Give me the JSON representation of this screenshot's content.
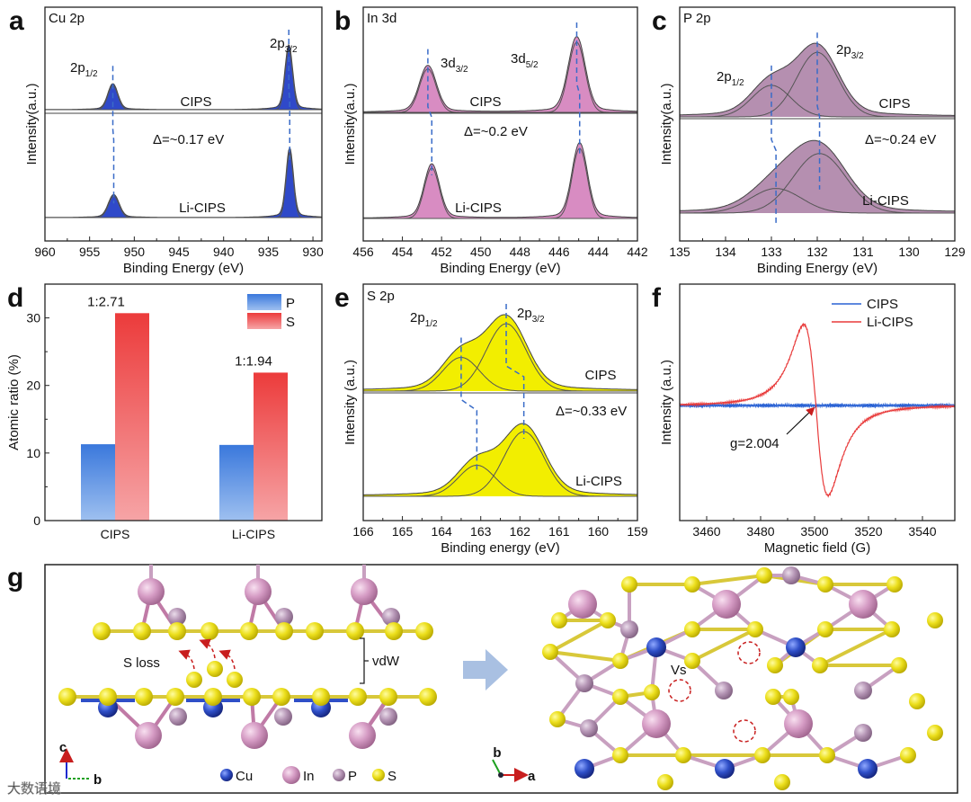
{
  "figure": {
    "panel_letters": [
      "a",
      "b",
      "c",
      "d",
      "e",
      "f",
      "g"
    ],
    "colors": {
      "axis": "#222222",
      "dash": "#3a6cc8",
      "component": "#555555"
    }
  },
  "chart_data": [
    {
      "panel": "a",
      "type": "line",
      "title": "Cu 2p",
      "xlabel": "Binding Energy (eV)",
      "ylabel": "Intensity(a.u.)",
      "xlim": [
        960,
        929
      ],
      "xticks": [
        960,
        955,
        950,
        945,
        940,
        935,
        930
      ],
      "fill": "#2f49c9",
      "series": [
        {
          "name": "CIPS",
          "peaks": [
            {
              "center": 952.4,
              "height": 0.4,
              "fwhm": 1.3
            },
            {
              "center": 932.7,
              "height": 1.0,
              "fwhm": 1.0
            }
          ]
        },
        {
          "name": "Li-CIPS",
          "peaks": [
            {
              "center": 952.3,
              "height": 0.33,
              "fwhm": 1.4
            },
            {
              "center": 932.6,
              "height": 1.0,
              "fwhm": 0.95
            }
          ]
        }
      ],
      "peak_labels": [
        {
          "main": "2p",
          "sub": "1/2"
        },
        {
          "main": "2p",
          "sub": "3/2"
        }
      ],
      "annotation": "Δ=~0.17 eV"
    },
    {
      "panel": "b",
      "type": "line",
      "title": "In 3d",
      "xlabel": "Binding Energy (eV)",
      "ylabel": "Intensity(a.u.)",
      "xlim": [
        456,
        442
      ],
      "xticks": [
        456,
        454,
        452,
        450,
        448,
        446,
        444,
        442
      ],
      "fill": "#d88cc2",
      "series": [
        {
          "name": "CIPS",
          "peaks": [
            {
              "center": 452.7,
              "height": 0.62,
              "fwhm": 1.0
            },
            {
              "center": 445.1,
              "height": 1.0,
              "fwhm": 1.0
            }
          ]
        },
        {
          "name": "Li-CIPS",
          "peaks": [
            {
              "center": 452.5,
              "height": 0.72,
              "fwhm": 0.9
            },
            {
              "center": 444.95,
              "height": 1.0,
              "fwhm": 0.9
            }
          ]
        }
      ],
      "peak_labels": [
        {
          "main": "3d",
          "sub": "3/2"
        },
        {
          "main": "3d",
          "sub": "5/2"
        }
      ],
      "annotation": "Δ=~0.2 eV"
    },
    {
      "panel": "c",
      "type": "line",
      "title": "P 2p",
      "xlabel": "Binding Energy (eV)",
      "ylabel": "Intensity(a.u.)",
      "xlim": [
        135,
        129
      ],
      "xticks": [
        135,
        134,
        133,
        132,
        131,
        130,
        129
      ],
      "fill": "#b58fb0",
      "series": [
        {
          "name": "CIPS",
          "peaks": [
            {
              "center": 133.0,
              "height": 0.45,
              "fwhm": 1.0
            },
            {
              "center": 132.0,
              "height": 0.92,
              "fwhm": 1.05
            }
          ]
        },
        {
          "name": "Li-CIPS",
          "peaks": [
            {
              "center": 132.9,
              "height": 0.38,
              "fwhm": 1.3
            },
            {
              "center": 131.95,
              "height": 0.92,
              "fwhm": 1.35
            }
          ]
        }
      ],
      "peak_labels": [
        {
          "main": "2p",
          "sub": "1/2"
        },
        {
          "main": "2p",
          "sub": "3/2"
        }
      ],
      "annotation": "Δ=~0.24 eV"
    },
    {
      "panel": "d",
      "type": "bar",
      "title": "",
      "xlabel": "",
      "ylabel": "Atomic ratio (%)",
      "ylim": [
        0,
        35
      ],
      "yticks": [
        0,
        10,
        20,
        30
      ],
      "categories": [
        "CIPS",
        "Li-CIPS"
      ],
      "series": [
        {
          "name": "P",
          "values": [
            11.3,
            11.2
          ],
          "color": "#3a78dc"
        },
        {
          "name": "S",
          "values": [
            30.7,
            21.9
          ],
          "color": "#ec3b3b"
        }
      ],
      "bar_labels": [
        "1:2.71",
        "1:1.94"
      ],
      "legend": "top-right"
    },
    {
      "panel": "e",
      "type": "line",
      "title": "S 2p",
      "xlabel": "Binding energy (eV)",
      "ylabel": "Intensity (a.u.)",
      "xlim": [
        166,
        159
      ],
      "xticks": [
        166,
        165,
        164,
        163,
        162,
        161,
        160,
        159
      ],
      "fill": "#f2ee00",
      "series": [
        {
          "name": "CIPS",
          "peaks": [
            {
              "center": 163.5,
              "height": 0.5,
              "fwhm": 1.1
            },
            {
              "center": 162.35,
              "height": 1.0,
              "fwhm": 1.2
            }
          ]
        },
        {
          "name": "Li-CIPS",
          "peaks": [
            {
              "center": 163.1,
              "height": 0.48,
              "fwhm": 1.1
            },
            {
              "center": 161.9,
              "height": 1.0,
              "fwhm": 1.2
            }
          ]
        }
      ],
      "peak_labels": [
        {
          "main": "2p",
          "sub": "1/2"
        },
        {
          "main": "2p",
          "sub": "3/2"
        }
      ],
      "annotation": "Δ=~0.33 eV"
    },
    {
      "panel": "f",
      "type": "line",
      "title": "",
      "xlabel": "Magnetic field (G)",
      "ylabel": "Intensity (a.u.)",
      "xlim": [
        3450,
        3552
      ],
      "xticks": [
        3460,
        3480,
        3500,
        3520,
        3540
      ],
      "series": [
        {
          "name": "CIPS",
          "color": "#2a62d4",
          "signal": {
            "center": 3500.5,
            "amplitude": 0.0
          }
        },
        {
          "name": "Li-CIPS",
          "color": "#e83a3a",
          "signal": {
            "center": 3500.5,
            "amplitude": 1.0,
            "width": 7.8
          }
        }
      ],
      "annotation": "g=2.004",
      "legend": "top-right"
    }
  ],
  "structure": {
    "side_view": {
      "s_loss": "S loss",
      "vdw": "vdW",
      "axis_c": "c",
      "axis_b": "b"
    },
    "top_view": {
      "vacancy": "Vs",
      "axis_b": "b",
      "axis_a": "a"
    },
    "legend": [
      {
        "label": "Cu",
        "color": "#2f4fc8"
      },
      {
        "label": "In",
        "color": "#d59bc4"
      },
      {
        "label": "P",
        "color": "#b595b5"
      },
      {
        "label": "S",
        "color": "#ecdf1c"
      }
    ],
    "watermark": "大数语境"
  }
}
